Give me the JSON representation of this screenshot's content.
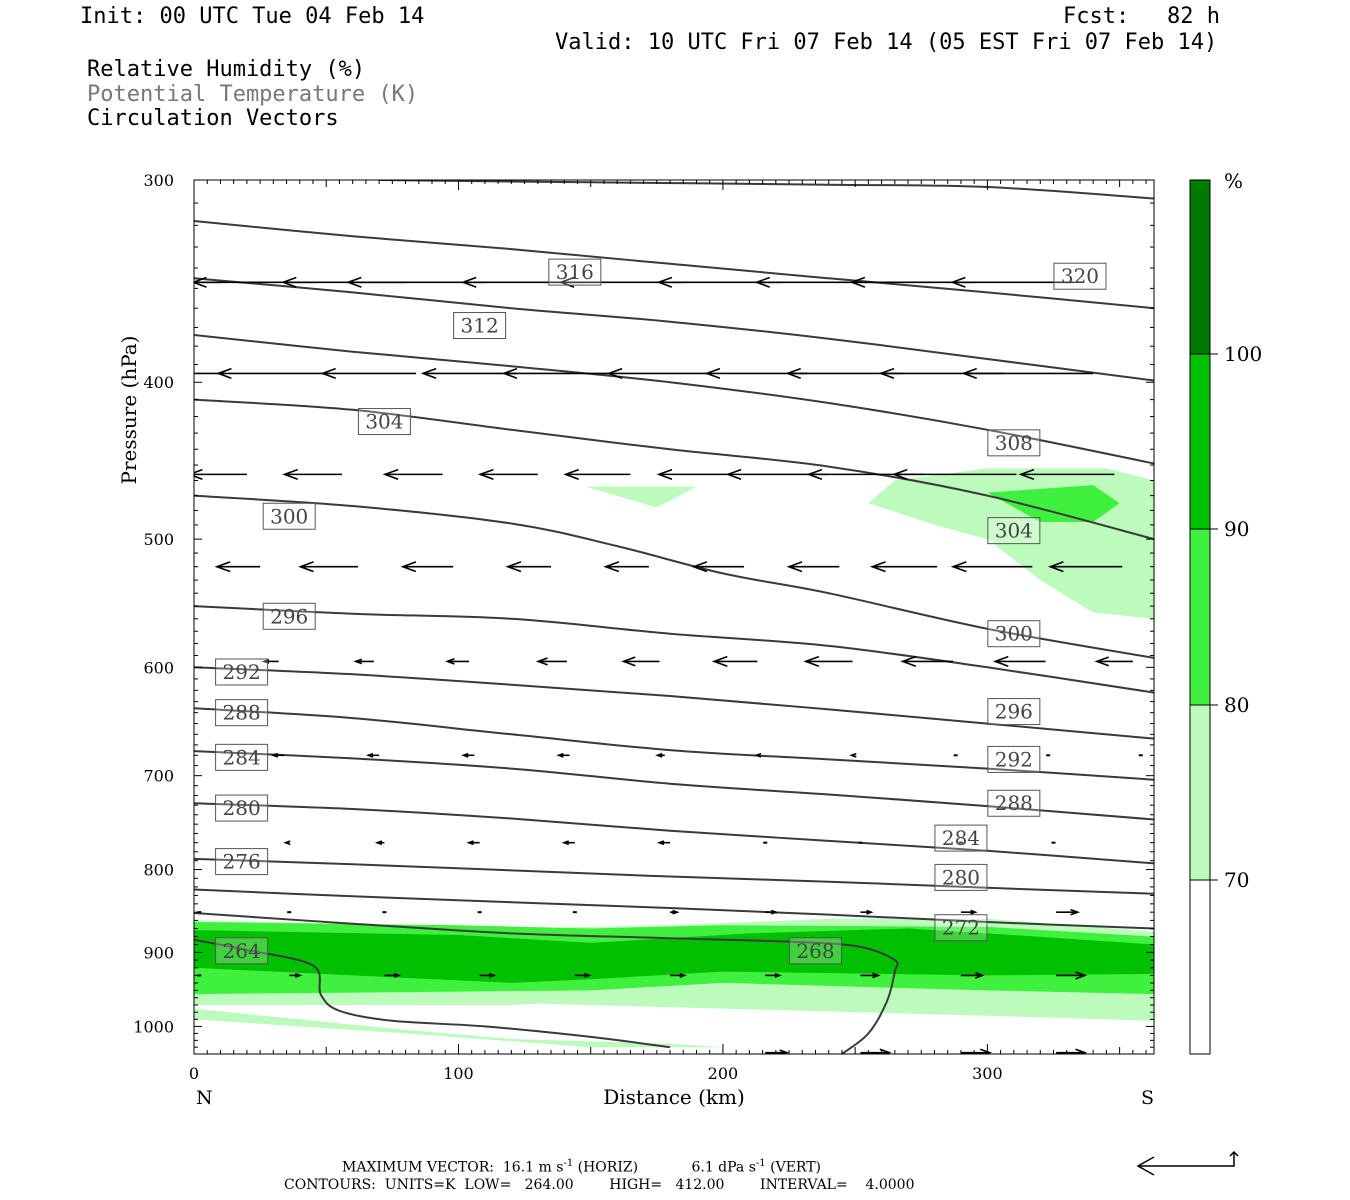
{
  "header": {
    "init": "Init: 00 UTC Tue 04 Feb 14",
    "fcst_label": "Fcst:",
    "fcst_value": "82 h",
    "valid": "Valid: 10 UTC Fri 07 Feb 14 (05 EST Fri 07 Feb 14)",
    "legend_lines": [
      "Relative Humidity (%)",
      "Potential Temperature (K)",
      "Circulation Vectors"
    ]
  },
  "footer": {
    "max_vector_label": "MAXIMUM VECTOR:",
    "horiz": "16.1 m s",
    "horiz_unit": "(HORIZ)",
    "vert": "6.1 dPa s",
    "vert_unit": "(VERT)",
    "exponent": "-1",
    "contours": "CONTOURS:  UNITS=K  LOW=   264.00        HIGH=   412.00        INTERVAL=    4.0000"
  },
  "colors": {
    "rh_70_80": "#bdfbbd",
    "rh_80_90": "#3ff03f",
    "rh_90_100": "#00c000",
    "rh_100": "#007a00",
    "contour": "#3a3a3a",
    "vector": "#000000"
  },
  "chart_data": {
    "type": "cross-section",
    "xlabel": "Distance (km)",
    "ylabel": "Pressure (hPa)",
    "xlim": [
      0,
      363
    ],
    "ylim": [
      1040,
      300
    ],
    "y_scale": "log-pressure",
    "x_ticks": [
      0,
      100,
      200,
      300
    ],
    "y_ticks": [
      300,
      400,
      500,
      600,
      700,
      800,
      900,
      1000
    ],
    "x_end_labels": {
      "left": "N",
      "right": "S"
    },
    "colorbar": {
      "unit": "%",
      "levels": [
        70,
        80,
        90,
        100
      ]
    },
    "theta_contours": [
      {
        "value": 264,
        "label_at": [
          18,
          898
        ],
        "points": [
          [
            0,
            884
          ],
          [
            20,
            897
          ],
          [
            45,
            917
          ],
          [
            48,
            956
          ],
          [
            55,
            978
          ],
          [
            75,
            992
          ],
          [
            110,
            1000
          ],
          [
            150,
            1015
          ],
          [
            180,
            1030
          ]
        ]
      },
      {
        "value": 268,
        "label_at": [
          235,
          898
        ],
        "points": [
          [
            0,
            851
          ],
          [
            60,
            864
          ],
          [
            120,
            876
          ],
          [
            180,
            882
          ],
          [
            230,
            887
          ],
          [
            252,
            893
          ],
          [
            265,
            910
          ],
          [
            265,
            925
          ],
          [
            262,
            965
          ],
          [
            255,
            1010
          ],
          [
            245,
            1040
          ]
        ]
      },
      {
        "value": 272,
        "label_at": [
          290,
          869
        ],
        "points": [
          [
            0,
            823
          ],
          [
            60,
            831
          ],
          [
            120,
            838
          ],
          [
            180,
            845
          ],
          [
            240,
            853
          ],
          [
            300,
            862
          ],
          [
            363,
            870
          ]
        ]
      },
      {
        "value": 276,
        "label_at": [
          18,
          791
        ],
        "points": [
          [
            0,
            788
          ],
          [
            60,
            794
          ],
          [
            120,
            801
          ],
          [
            180,
            808
          ],
          [
            240,
            814
          ],
          [
            300,
            821
          ],
          [
            363,
            828
          ]
        ]
      },
      {
        "value": 280,
        "label_at": [
          18,
          733
        ],
        "points": [
          [
            0,
            728
          ],
          [
            60,
            734
          ],
          [
            120,
            744
          ],
          [
            180,
            757
          ],
          [
            240,
            768
          ],
          [
            300,
            779
          ],
          [
            363,
            793
          ]
        ]
      },
      {
        "value": 280,
        "label_at": [
          290,
          809
        ],
        "points": []
      },
      {
        "value": 284,
        "label_at": [
          18,
          682
        ],
        "points": [
          [
            0,
            676
          ],
          [
            60,
            683
          ],
          [
            120,
            693
          ],
          [
            180,
            708
          ],
          [
            240,
            719
          ],
          [
            300,
            731
          ],
          [
            363,
            745
          ]
        ]
      },
      {
        "value": 284,
        "label_at": [
          290,
          765
        ],
        "points": []
      },
      {
        "value": 288,
        "label_at": [
          18,
          640
        ],
        "points": [
          [
            0,
            636
          ],
          [
            60,
            645
          ],
          [
            120,
            660
          ],
          [
            180,
            675
          ],
          [
            240,
            684
          ],
          [
            300,
            693
          ],
          [
            363,
            704
          ]
        ]
      },
      {
        "value": 288,
        "label_at": [
          310,
          728
        ],
        "points": []
      },
      {
        "value": 292,
        "label_at": [
          18,
          604
        ],
        "points": [
          [
            0,
            600
          ],
          [
            60,
            606
          ],
          [
            120,
            615
          ],
          [
            180,
            625
          ],
          [
            240,
            637
          ],
          [
            300,
            650
          ],
          [
            363,
            664
          ]
        ]
      },
      {
        "value": 292,
        "label_at": [
          310,
          684
        ],
        "points": []
      },
      {
        "value": 296,
        "label_at": [
          36,
          558
        ],
        "points": [
          [
            0,
            550
          ],
          [
            60,
            556
          ],
          [
            120,
            560
          ],
          [
            180,
            572
          ],
          [
            240,
            582
          ],
          [
            300,
            600
          ],
          [
            363,
            622
          ]
        ]
      },
      {
        "value": 296,
        "label_at": [
          310,
          639
        ],
        "points": []
      },
      {
        "value": 300,
        "label_at": [
          36,
          484
        ],
        "points": [
          [
            0,
            470
          ],
          [
            60,
            477
          ],
          [
            120,
            489
          ],
          [
            160,
            505
          ],
          [
            200,
            525
          ],
          [
            240,
            540
          ],
          [
            300,
            568
          ],
          [
            363,
            592
          ]
        ]
      },
      {
        "value": 300,
        "label_at": [
          310,
          572
        ],
        "points": []
      },
      {
        "value": 304,
        "label_at": [
          72,
          423
        ],
        "points": [
          [
            0,
            410
          ],
          [
            60,
            416
          ],
          [
            120,
            428
          ],
          [
            180,
            440
          ],
          [
            240,
            451
          ],
          [
            300,
            470
          ],
          [
            363,
            500
          ]
        ]
      },
      {
        "value": 304,
        "label_at": [
          310,
          494
        ],
        "points": []
      },
      {
        "value": 308,
        "label_at": [
          310,
          436
        ],
        "points": [
          [
            0,
            374
          ],
          [
            60,
            383
          ],
          [
            120,
            391
          ],
          [
            180,
            400
          ],
          [
            240,
            412
          ],
          [
            300,
            428
          ],
          [
            363,
            449
          ]
        ]
      },
      {
        "value": 312,
        "label_at": [
          108,
          369
        ],
        "points": [
          [
            0,
            345
          ],
          [
            60,
            352
          ],
          [
            120,
            360
          ],
          [
            180,
            367
          ],
          [
            240,
            376
          ],
          [
            300,
            387
          ],
          [
            363,
            399
          ]
        ]
      },
      {
        "value": 316,
        "label_at": [
          144,
          342
        ],
        "points": [
          [
            0,
            318
          ],
          [
            60,
            325
          ],
          [
            120,
            331
          ],
          [
            180,
            338
          ],
          [
            240,
            345
          ],
          [
            300,
            352
          ],
          [
            363,
            360
          ]
        ]
      },
      {
        "value": 320,
        "label_at": [
          335,
          344
        ],
        "points": [
          [
            70,
            300
          ],
          [
            150,
            301
          ],
          [
            240,
            302
          ],
          [
            300,
            303
          ],
          [
            363,
            308
          ]
        ]
      }
    ],
    "rh_regions": [
      {
        "min": 70,
        "max": 80,
        "polygon": [
          [
            0,
            860
          ],
          [
            60,
            864
          ],
          [
            120,
            870
          ],
          [
            180,
            866
          ],
          [
            240,
            858
          ],
          [
            300,
            858
          ],
          [
            363,
            874
          ],
          [
            363,
            992
          ],
          [
            300,
            985
          ],
          [
            200,
            975
          ],
          [
            130,
            968
          ],
          [
            120,
            970
          ],
          [
            0,
            970
          ]
        ]
      },
      {
        "min": 70,
        "max": 80,
        "polygon": [
          [
            0,
            975
          ],
          [
            40,
            990
          ],
          [
            80,
            1005
          ],
          [
            120,
            1018
          ],
          [
            180,
            1025
          ],
          [
            200,
            1030
          ],
          [
            150,
            1030
          ],
          [
            80,
            1010
          ],
          [
            0,
            990
          ]
        ]
      },
      {
        "min": 70,
        "max": 80,
        "polygon": [
          [
            255,
            475
          ],
          [
            265,
            460
          ],
          [
            300,
            452
          ],
          [
            345,
            452
          ],
          [
            363,
            460
          ],
          [
            363,
            560
          ],
          [
            340,
            555
          ],
          [
            320,
            530
          ],
          [
            300,
            500
          ],
          [
            280,
            490
          ]
        ]
      },
      {
        "min": 70,
        "max": 80,
        "polygon": [
          [
            148,
            464
          ],
          [
            190,
            464
          ],
          [
            175,
            478
          ]
        ]
      },
      {
        "min": 80,
        "max": 90,
        "polygon": [
          [
            0,
            862
          ],
          [
            100,
            866
          ],
          [
            150,
            870
          ],
          [
            200,
            866
          ],
          [
            300,
            868
          ],
          [
            363,
            880
          ],
          [
            363,
            955
          ],
          [
            300,
            950
          ],
          [
            200,
            940
          ],
          [
            150,
            950
          ],
          [
            0,
            955
          ]
        ]
      },
      {
        "min": 80,
        "max": 90,
        "polygon": [
          [
            300,
            468
          ],
          [
            340,
            463
          ],
          [
            350,
            475
          ],
          [
            340,
            488
          ],
          [
            320,
            488
          ]
        ]
      },
      {
        "min": 90,
        "max": 100,
        "polygon": [
          [
            0,
            872
          ],
          [
            100,
            878
          ],
          [
            150,
            888
          ],
          [
            210,
            876
          ],
          [
            270,
            870
          ],
          [
            300,
            876
          ],
          [
            363,
            890
          ],
          [
            363,
            928
          ],
          [
            300,
            930
          ],
          [
            200,
            925
          ],
          [
            150,
            935
          ],
          [
            120,
            940
          ],
          [
            0,
            920
          ]
        ]
      }
    ],
    "vectors": [
      {
        "p": 347,
        "x": [
          10,
          46,
          80,
          110,
          148,
          185,
          222,
          259,
          295,
          333
        ],
        "u": [
          -30,
          -34,
          -34,
          -38,
          -34,
          -34,
          -34,
          -34,
          -34,
          -34
        ],
        "v": [
          0,
          0,
          0,
          0,
          0,
          0,
          0,
          0,
          0,
          0
        ]
      },
      {
        "p": 395,
        "x": [
          12,
          50,
          84,
          122,
          158,
          195,
          232,
          268,
          306,
          340
        ],
        "u": [
          -26,
          -30,
          -26,
          -26,
          -30,
          -28,
          -28,
          -32,
          -34,
          -36
        ],
        "v": [
          0,
          0,
          0,
          0,
          0,
          0,
          0,
          0,
          0,
          0
        ]
      },
      {
        "p": 456,
        "x": [
          20,
          56,
          94,
          130,
          165,
          203,
          240,
          276,
          311,
          348
        ],
        "u": [
          -16,
          -16,
          -16,
          -16,
          -18,
          -20,
          -28,
          -32,
          -34,
          -26
        ],
        "v": [
          0,
          0,
          0,
          0,
          0,
          0,
          0,
          0,
          0,
          0
        ]
      },
      {
        "p": 520,
        "x": [
          25,
          62,
          98,
          135,
          172,
          208,
          244,
          281,
          317,
          351
        ],
        "u": [
          -12,
          -16,
          -14,
          -12,
          -12,
          -14,
          -14,
          -18,
          -22,
          -20
        ],
        "v": [
          0,
          0,
          0,
          0,
          0,
          0,
          0,
          0,
          0,
          0
        ]
      },
      {
        "p": 595,
        "x": [
          32,
          68,
          104,
          141,
          176,
          213,
          249,
          287,
          322,
          355
        ],
        "u": [
          -4,
          -5,
          -6,
          -8,
          -10,
          -12,
          -13,
          -14,
          -14,
          -10
        ],
        "v": [
          0,
          0,
          0,
          0,
          0,
          0,
          0,
          0,
          0,
          0
        ]
      },
      {
        "p": 680,
        "x": [
          34,
          70,
          106,
          142,
          178,
          214,
          250,
          288,
          323,
          358
        ],
        "u": [
          -3,
          -3,
          -3,
          -3,
          -2,
          -1,
          -1,
          0,
          0,
          0
        ],
        "v": [
          0,
          0,
          0,
          0,
          0,
          0,
          0,
          0,
          0,
          0
        ]
      },
      {
        "p": 770,
        "x": [
          36,
          72,
          108,
          144,
          180,
          216,
          252,
          290,
          325
        ],
        "u": [
          -1,
          -2,
          -3,
          -3,
          -3,
          0,
          0,
          0,
          0
        ],
        "v": [
          0,
          0,
          0,
          0,
          0,
          0,
          0,
          0,
          0
        ]
      },
      {
        "p": 850,
        "x": [
          2,
          36,
          72,
          108,
          144,
          180,
          216,
          252,
          290,
          326
        ],
        "u": [
          0,
          0,
          0,
          0,
          0,
          2,
          3,
          3,
          4,
          6
        ],
        "v": [
          0,
          0,
          0,
          0,
          0,
          0,
          0,
          0,
          0,
          0
        ]
      },
      {
        "p": 930,
        "x": [
          2,
          36,
          72,
          108,
          144,
          180,
          216,
          252,
          290,
          326
        ],
        "u": [
          0,
          3,
          4,
          4,
          4,
          4,
          4,
          5,
          6,
          8
        ],
        "v": [
          0,
          0,
          0,
          0,
          0,
          0,
          0,
          0,
          0,
          0
        ]
      },
      {
        "p": 1038,
        "x": [
          216,
          252,
          290,
          326
        ],
        "u": [
          6,
          8,
          8,
          8
        ],
        "v": [
          0,
          0,
          0,
          0
        ]
      }
    ]
  }
}
